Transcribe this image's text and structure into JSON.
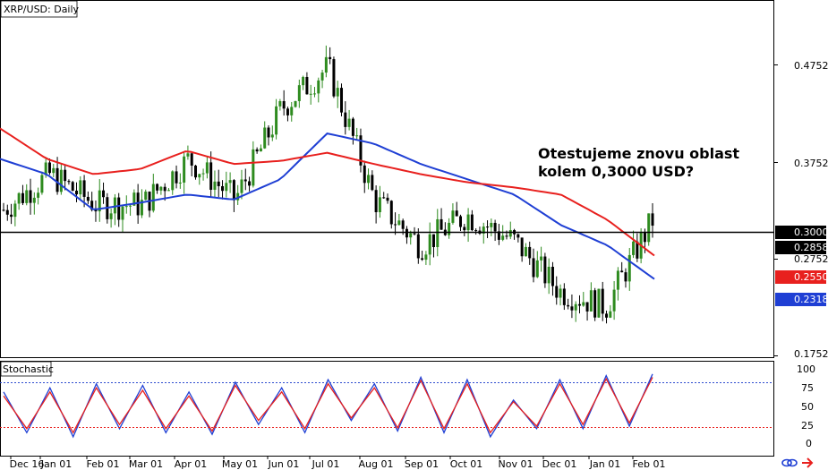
{
  "main_panel": {
    "title": "XRP/USD: Daily",
    "annotation_line1": "Otestujeme znovu oblast",
    "annotation_line2": "kolem 0,3000 USD?",
    "price_ticks": [
      "0.4752",
      "0.3752",
      "0.2752",
      "0.1752"
    ],
    "badges": [
      {
        "label": "0.3000",
        "bg": "#000000",
        "fg": "#ffffff",
        "value": 0.3
      },
      {
        "label": "0.2858",
        "bg": "#000000",
        "fg": "#ffffff",
        "value": 0.2858
      },
      {
        "label": "0.2550",
        "bg": "#e8201e",
        "fg": "#ffffff",
        "value": 0.255
      },
      {
        "label": "0.2318",
        "bg": "#1f3fd4",
        "fg": "#ffffff",
        "value": 0.2318
      }
    ]
  },
  "stoch_panel": {
    "title": "Stochastic",
    "ticks": [
      "100",
      "75",
      "50",
      "25",
      "0"
    ],
    "levels": [
      80,
      20
    ]
  },
  "x_axis": {
    "labels": [
      "Dec 16",
      "Jan 01",
      "Feb 01",
      "Mar 01",
      "Apr 01",
      "May 01",
      "Jun 01",
      "Jul 01",
      "Aug 01",
      "Sep 01",
      "Oct 01",
      "Nov 01",
      "Dec 01",
      "Jan 01",
      "Feb 01"
    ]
  },
  "colors": {
    "bull": "#2e8b1f",
    "bear": "#000000",
    "ma_fast": "#1f3fd4",
    "ma_slow": "#e8201e",
    "stoch_k": "#1f3fd4",
    "stoch_d": "#e8201e",
    "level_line": "#000000"
  },
  "icons": [
    "link-icon",
    "arrow-icon"
  ],
  "chart_data": [
    {
      "type": "line",
      "title": "XRP/USD: Daily",
      "ylim": [
        0.1552,
        0.5052
      ],
      "x": [
        "Dec 16",
        "Jan 01",
        "Feb 01",
        "Mar 01",
        "Apr 01",
        "May 01",
        "Jun 01",
        "Jul 01",
        "Aug 01",
        "Sep 01",
        "Oct 01",
        "Nov 01",
        "Dec 01",
        "Jan 01",
        "Feb 01"
      ],
      "series": [
        {
          "values": [
            0.3,
            0.335,
            0.305,
            0.305,
            0.35,
            0.31,
            0.4,
            0.44,
            0.31,
            0.265,
            0.295,
            0.27,
            0.22,
            0.205,
            0.29
          ]
        },
        {
          "values": [
            0.35,
            0.335,
            0.3,
            0.307,
            0.315,
            0.31,
            0.33,
            0.375,
            0.365,
            0.345,
            0.33,
            0.315,
            0.285,
            0.265,
            0.232
          ]
        },
        {
          "values": [
            0.38,
            0.35,
            0.335,
            0.34,
            0.358,
            0.345,
            0.348,
            0.356,
            0.345,
            0.335,
            0.327,
            0.322,
            0.315,
            0.29,
            0.255
          ]
        }
      ],
      "horizontal_line": 0.3,
      "candles": true
    },
    {
      "type": "line",
      "title": "Stochastic",
      "ylim": [
        -6,
        106
      ],
      "levels": [
        80,
        20
      ],
      "series": [
        {
          "values": [
            70,
            20,
            75,
            15,
            80,
            25,
            78,
            20,
            70,
            18,
            82,
            30,
            75,
            20,
            85,
            35,
            80,
            22,
            88,
            20,
            85,
            15,
            60,
            25,
            85,
            25,
            90,
            28,
            92
          ]
        },
        {
          "values": [
            65,
            25,
            70,
            20,
            75,
            30,
            72,
            25,
            65,
            22,
            78,
            35,
            70,
            25,
            80,
            38,
            75,
            26,
            84,
            25,
            80,
            20,
            58,
            28,
            80,
            30,
            86,
            32,
            88
          ]
        }
      ]
    }
  ]
}
